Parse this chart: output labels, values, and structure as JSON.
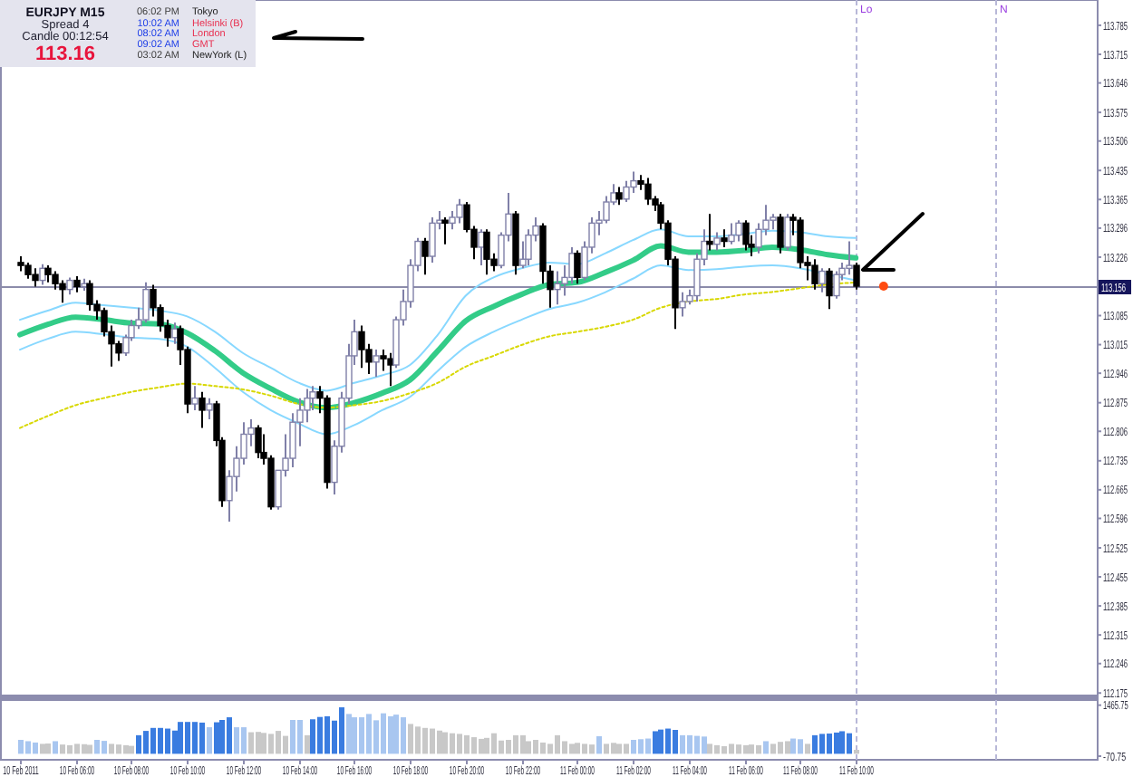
{
  "chart_data": [
    {
      "type": "candlestick",
      "title": "EURJPY M15",
      "annotations": [
        "Spread 4",
        "Candle 00:12:54",
        "113.16",
        "06:02 PM",
        "Tokyo",
        "10:02 AM",
        "Helsinki (B)",
        "08:02 AM",
        "London",
        "09:02 AM",
        "GMT",
        "03:02 AM",
        "NewYork (L)"
      ],
      "x": [
        "2011-02-10T04:00",
        "2011-02-10T04:15",
        "2011-02-10T04:30",
        "2011-02-10T04:45",
        "2011-02-10T05:00",
        "2011-02-10T05:15",
        "2011-02-10T05:30",
        "2011-02-10T05:45",
        "2011-02-10T06:00",
        "2011-02-10T06:15",
        "2011-02-10T06:30",
        "2011-02-10T06:45",
        "2011-02-10T07:00",
        "2011-02-10T07:15",
        "2011-02-10T07:30",
        "2011-02-10T07:45",
        "2011-02-10T08:00",
        "2011-02-10T08:15",
        "2011-02-10T08:30",
        "2011-02-10T08:45",
        "2011-02-10T09:00",
        "2011-02-10T09:15",
        "2011-02-10T09:30",
        "2011-02-10T09:45",
        "2011-02-10T10:00",
        "2011-02-10T10:15",
        "2011-02-10T10:30",
        "2011-02-10T10:45",
        "2011-02-10T11:00",
        "2011-02-10T11:15",
        "2011-02-10T11:30",
        "2011-02-10T11:45",
        "2011-02-10T12:00",
        "2011-02-10T12:15",
        "2011-02-10T12:30",
        "2011-02-10T12:45",
        "2011-02-10T13:00",
        "2011-02-10T13:15",
        "2011-02-10T13:30",
        "2011-02-10T13:45",
        "2011-02-10T14:00",
        "2011-02-10T14:15",
        "2011-02-10T14:30",
        "2011-02-10T14:45",
        "2011-02-10T15:00",
        "2011-02-10T15:15",
        "2011-02-10T15:30",
        "2011-02-10T15:45",
        "2011-02-10T16:00",
        "2011-02-10T16:15",
        "2011-02-10T16:30",
        "2011-02-10T16:45",
        "2011-02-10T17:00",
        "2011-02-10T17:15",
        "2011-02-10T17:30",
        "2011-02-10T17:45",
        "2011-02-10T18:00",
        "2011-02-10T18:15",
        "2011-02-10T18:30",
        "2011-02-10T18:45",
        "2011-02-10T19:00",
        "2011-02-10T19:15",
        "2011-02-10T19:30",
        "2011-02-10T19:45",
        "2011-02-10T20:00",
        "2011-02-10T20:15",
        "2011-02-10T20:30",
        "2011-02-10T20:45",
        "2011-02-10T21:00",
        "2011-02-10T21:15",
        "2011-02-10T21:30",
        "2011-02-10T21:45",
        "2011-02-10T22:00",
        "2011-02-10T22:15",
        "2011-02-10T22:30",
        "2011-02-10T22:45",
        "2011-02-10T23:00",
        "2011-02-10T23:15",
        "2011-02-10T23:30",
        "2011-02-10T23:45",
        "2011-02-11T00:00",
        "2011-02-11T00:15",
        "2011-02-11T00:30",
        "2011-02-11T00:45",
        "2011-02-11T01:00",
        "2011-02-11T01:15",
        "2011-02-11T01:30",
        "2011-02-11T01:45",
        "2011-02-11T02:00",
        "2011-02-11T02:15",
        "2011-02-11T02:30",
        "2011-02-11T02:45",
        "2011-02-11T03:00",
        "2011-02-11T03:15",
        "2011-02-11T03:30",
        "2011-02-11T03:45",
        "2011-02-11T04:00",
        "2011-02-11T04:15",
        "2011-02-11T04:30",
        "2011-02-11T04:45",
        "2011-02-11T05:00",
        "2011-02-11T05:15",
        "2011-02-11T05:30",
        "2011-02-11T05:45",
        "2011-02-11T06:00",
        "2011-02-11T06:15",
        "2011-02-11T06:30",
        "2011-02-11T06:45",
        "2011-02-11T07:00",
        "2011-02-11T07:15",
        "2011-02-11T07:30",
        "2011-02-11T07:45",
        "2011-02-11T08:00",
        "2011-02-11T08:15",
        "2011-02-11T08:30",
        "2011-02-11T08:45",
        "2011-02-11T09:00",
        "2011-02-11T09:15",
        "2011-02-11T09:30",
        "2011-02-11T09:45",
        "2011-02-11T10:00"
      ],
      "ohlc": [
        [
          113.213,
          113.228,
          113.192,
          113.206
        ],
        [
          113.206,
          113.213,
          113.174,
          113.184
        ],
        [
          113.184,
          113.199,
          113.155,
          113.17
        ],
        [
          113.17,
          113.209,
          113.159,
          113.199
        ],
        [
          113.199,
          113.206,
          113.165,
          113.184
        ],
        [
          113.184,
          113.192,
          113.148,
          113.162
        ],
        [
          113.162,
          113.17,
          113.116,
          113.148
        ],
        [
          113.148,
          113.177,
          113.136,
          113.17
        ],
        [
          113.17,
          113.18,
          113.141,
          113.155
        ],
        [
          113.155,
          113.174,
          113.145,
          113.162
        ],
        [
          113.162,
          113.17,
          113.097,
          113.112
        ],
        [
          113.112,
          113.122,
          113.075,
          113.097
        ],
        [
          113.097,
          113.104,
          113.035,
          113.046
        ],
        [
          113.046,
          113.061,
          112.962,
          113.017
        ],
        [
          113.017,
          113.024,
          112.976,
          112.995
        ],
        [
          112.995,
          113.039,
          112.988,
          113.032
        ],
        [
          113.032,
          113.075,
          113.024,
          113.061
        ],
        [
          113.061,
          113.104,
          113.053,
          113.075
        ],
        [
          113.075,
          113.165,
          113.068,
          113.148
        ],
        [
          113.148,
          113.159,
          113.083,
          113.104
        ],
        [
          113.104,
          113.112,
          113.046,
          113.061
        ],
        [
          113.061,
          113.075,
          113.01,
          113.032
        ],
        [
          113.032,
          113.068,
          113.017,
          113.053
        ],
        [
          113.053,
          113.061,
          112.966,
          113.003
        ],
        [
          113.003,
          113.01,
          112.85,
          112.872
        ],
        [
          112.872,
          112.915,
          112.857,
          112.886
        ],
        [
          112.886,
          112.901,
          112.814,
          112.857
        ],
        [
          112.857,
          112.886,
          112.835,
          112.872
        ],
        [
          112.872,
          112.879,
          112.77,
          112.784
        ],
        [
          112.784,
          112.792,
          112.624,
          112.639
        ],
        [
          112.639,
          112.712,
          112.588,
          112.697
        ],
        [
          112.697,
          112.77,
          112.661,
          112.741
        ],
        [
          112.741,
          112.828,
          112.726,
          112.799
        ],
        [
          112.799,
          112.835,
          112.77,
          112.814
        ],
        [
          112.814,
          112.821,
          112.741,
          112.755
        ],
        [
          112.755,
          112.799,
          112.726,
          112.741
        ],
        [
          112.741,
          112.748,
          112.617,
          112.624
        ],
        [
          112.624,
          112.712,
          112.617,
          112.712
        ],
        [
          112.712,
          112.799,
          112.697,
          112.741
        ],
        [
          112.741,
          112.85,
          112.719,
          112.828
        ],
        [
          112.828,
          112.886,
          112.77,
          112.857
        ],
        [
          112.857,
          112.908,
          112.828,
          112.886
        ],
        [
          112.886,
          112.915,
          112.857,
          112.901
        ],
        [
          112.901,
          112.915,
          112.85,
          112.886
        ],
        [
          112.886,
          112.893,
          112.668,
          112.683
        ],
        [
          112.683,
          112.784,
          112.654,
          112.77
        ],
        [
          112.77,
          112.901,
          112.755,
          112.886
        ],
        [
          112.886,
          113.017,
          112.872,
          112.988
        ],
        [
          112.988,
          113.075,
          112.966,
          113.046
        ],
        [
          113.046,
          113.061,
          112.959,
          113.003
        ],
        [
          113.003,
          113.017,
          112.944,
          112.973
        ],
        [
          112.973,
          113.003,
          112.937,
          112.988
        ],
        [
          112.988,
          113.003,
          112.952,
          112.981
        ],
        [
          112.981,
          112.995,
          112.915,
          112.966
        ],
        [
          112.966,
          113.083,
          112.959,
          113.075
        ],
        [
          113.075,
          113.148,
          113.061,
          113.119
        ],
        [
          113.119,
          113.221,
          113.104,
          113.206
        ],
        [
          113.206,
          113.272,
          113.192,
          113.264
        ],
        [
          113.264,
          113.272,
          113.184,
          113.228
        ],
        [
          113.228,
          113.322,
          113.213,
          113.308
        ],
        [
          113.308,
          113.337,
          113.293,
          113.315
        ],
        [
          113.315,
          113.322,
          113.257,
          113.308
        ],
        [
          113.308,
          113.337,
          113.293,
          113.322
        ],
        [
          113.322,
          113.366,
          113.308,
          113.352
        ],
        [
          113.352,
          113.359,
          113.286,
          113.293
        ],
        [
          113.293,
          113.301,
          113.221,
          113.25
        ],
        [
          113.25,
          113.293,
          113.206,
          113.286
        ],
        [
          113.286,
          113.293,
          113.184,
          113.221
        ],
        [
          113.221,
          113.235,
          113.192,
          113.206
        ],
        [
          113.206,
          113.286,
          113.199,
          113.279
        ],
        [
          113.279,
          113.381,
          113.264,
          113.33
        ],
        [
          113.33,
          113.337,
          113.184,
          113.206
        ],
        [
          113.206,
          113.264,
          113.199,
          113.221
        ],
        [
          113.221,
          113.293,
          113.206,
          113.279
        ],
        [
          113.279,
          113.322,
          113.264,
          113.301
        ],
        [
          113.301,
          113.308,
          113.162,
          113.192
        ],
        [
          113.192,
          113.206,
          113.104,
          113.148
        ],
        [
          113.148,
          113.192,
          113.112,
          113.162
        ],
        [
          113.162,
          113.206,
          113.133,
          113.177
        ],
        [
          113.177,
          113.25,
          113.162,
          113.235
        ],
        [
          113.235,
          113.242,
          113.162,
          113.177
        ],
        [
          113.177,
          113.264,
          113.17,
          113.25
        ],
        [
          113.25,
          113.322,
          113.235,
          113.308
        ],
        [
          113.308,
          113.337,
          113.279,
          113.315
        ],
        [
          113.315,
          113.373,
          113.308,
          113.359
        ],
        [
          113.359,
          113.402,
          113.352,
          113.381
        ],
        [
          113.381,
          113.395,
          113.352,
          113.366
        ],
        [
          113.366,
          113.41,
          113.359,
          113.395
        ],
        [
          113.395,
          113.432,
          113.381,
          113.41
        ],
        [
          113.41,
          113.424,
          113.388,
          113.402
        ],
        [
          113.402,
          113.417,
          113.352,
          113.366
        ],
        [
          113.366,
          113.373,
          113.337,
          113.352
        ],
        [
          113.352,
          113.359,
          113.293,
          113.308
        ],
        [
          113.308,
          113.315,
          113.206,
          113.221
        ],
        [
          113.221,
          113.228,
          113.053,
          113.104
        ],
        [
          113.104,
          113.141,
          113.083,
          113.119
        ],
        [
          113.119,
          113.148,
          113.112,
          113.133
        ],
        [
          113.133,
          113.235,
          113.119,
          113.221
        ],
        [
          113.221,
          113.293,
          113.206,
          113.264
        ],
        [
          113.264,
          113.33,
          113.242,
          113.257
        ],
        [
          113.257,
          113.286,
          113.242,
          113.272
        ],
        [
          113.272,
          113.293,
          113.25,
          113.264
        ],
        [
          113.264,
          113.308,
          113.257,
          113.279
        ],
        [
          113.279,
          113.315,
          113.264,
          113.308
        ],
        [
          113.308,
          113.315,
          113.242,
          113.257
        ],
        [
          113.257,
          113.279,
          113.228,
          113.25
        ],
        [
          113.25,
          113.308,
          113.235,
          113.293
        ],
        [
          113.293,
          113.352,
          113.279,
          113.315
        ],
        [
          113.315,
          113.33,
          113.293,
          113.322
        ],
        [
          113.322,
          113.33,
          113.235,
          113.25
        ],
        [
          113.25,
          113.33,
          113.242,
          113.322
        ],
        [
          113.322,
          113.33,
          113.279,
          113.315
        ],
        [
          113.315,
          113.322,
          113.199,
          113.213
        ],
        [
          113.213,
          113.228,
          113.17,
          113.206
        ],
        [
          113.206,
          113.221,
          113.148,
          113.162
        ],
        [
          113.162,
          113.199,
          113.141,
          113.192
        ],
        [
          113.192,
          113.199,
          113.101,
          113.133
        ],
        [
          113.133,
          113.192,
          113.126,
          113.184
        ],
        [
          113.184,
          113.213,
          113.17,
          113.199
        ],
        [
          113.199,
          113.264,
          113.184,
          113.206
        ],
        [
          113.206,
          113.213,
          113.148,
          113.156
        ]
      ],
      "series": [
        {
          "type": "line",
          "color": "#33cc88",
          "x": [
            "2011-02-10T04:00",
            "2011-02-10T05:00",
            "2011-02-10T06:00",
            "2011-02-10T07:00",
            "2011-02-10T08:00",
            "2011-02-10T09:00",
            "2011-02-10T10:00",
            "2011-02-10T11:00",
            "2011-02-10T12:00",
            "2011-02-10T13:00",
            "2011-02-10T14:00",
            "2011-02-10T15:00",
            "2011-02-10T16:00",
            "2011-02-10T17:00",
            "2011-02-10T18:00",
            "2011-02-10T19:00",
            "2011-02-10T20:00",
            "2011-02-10T21:00",
            "2011-02-10T22:00",
            "2011-02-10T23:00",
            "2011-02-11T00:00",
            "2011-02-11T01:00",
            "2011-02-11T02:00",
            "2011-02-11T03:00",
            "2011-02-11T04:00",
            "2011-02-11T05:00",
            "2011-02-11T06:00",
            "2011-02-11T07:00",
            "2011-02-11T08:00",
            "2011-02-11T09:00",
            "2011-02-11T10:00"
          ],
          "values": [
            113.039,
            113.064,
            113.081,
            113.075,
            113.067,
            113.065,
            113.043,
            113.0,
            112.947,
            112.909,
            112.877,
            112.863,
            112.875,
            112.898,
            112.93,
            113.0,
            113.072,
            113.107,
            113.136,
            113.16,
            113.165,
            113.189,
            113.218,
            113.253,
            113.238,
            113.238,
            113.242,
            113.25,
            113.244,
            113.232,
            113.224
          ]
        },
        {
          "type": "line",
          "color": "#88d8ff",
          "x": [
            "2011-02-10T04:00",
            "2011-02-10T05:00",
            "2011-02-10T06:00",
            "2011-02-10T07:00",
            "2011-02-10T08:00",
            "2011-02-10T09:00",
            "2011-02-10T10:00",
            "2011-02-10T11:00",
            "2011-02-10T12:00",
            "2011-02-10T13:00",
            "2011-02-10T14:00",
            "2011-02-10T15:00",
            "2011-02-10T16:00",
            "2011-02-10T17:00",
            "2011-02-10T18:00",
            "2011-02-10T19:00",
            "2011-02-10T20:00",
            "2011-02-10T21:00",
            "2011-02-10T22:00",
            "2011-02-10T23:00",
            "2011-02-11T00:00",
            "2011-02-11T01:00",
            "2011-02-11T02:00",
            "2011-02-11T03:00",
            "2011-02-11T04:00",
            "2011-02-11T05:00",
            "2011-02-11T06:00",
            "2011-02-11T07:00",
            "2011-02-11T08:00",
            "2011-02-11T09:00",
            "2011-02-11T10:00"
          ],
          "values": [
            113.075,
            113.097,
            113.116,
            113.11,
            113.104,
            113.097,
            113.083,
            113.046,
            112.995,
            112.959,
            112.923,
            112.904,
            112.923,
            112.941,
            112.966,
            113.039,
            113.133,
            113.177,
            113.199,
            113.213,
            113.209,
            113.235,
            113.267,
            113.293,
            113.276,
            113.276,
            113.282,
            113.29,
            113.286,
            113.276,
            113.272
          ]
        },
        {
          "type": "line",
          "color": "#88d8ff",
          "x": [
            "2011-02-10T04:00",
            "2011-02-10T05:00",
            "2011-02-10T06:00",
            "2011-02-10T07:00",
            "2011-02-10T08:00",
            "2011-02-10T09:00",
            "2011-02-10T10:00",
            "2011-02-10T11:00",
            "2011-02-10T12:00",
            "2011-02-10T13:00",
            "2011-02-10T14:00",
            "2011-02-10T15:00",
            "2011-02-10T16:00",
            "2011-02-10T17:00",
            "2011-02-10T18:00",
            "2011-02-10T19:00",
            "2011-02-10T20:00",
            "2011-02-10T21:00",
            "2011-02-10T22:00",
            "2011-02-10T23:00",
            "2011-02-11T00:00",
            "2011-02-11T01:00",
            "2011-02-11T02:00",
            "2011-02-11T03:00",
            "2011-02-11T04:00",
            "2011-02-11T05:00",
            "2011-02-11T06:00",
            "2011-02-11T07:00",
            "2011-02-11T08:00",
            "2011-02-11T09:00",
            "2011-02-11T10:00"
          ],
          "values": [
            113.003,
            113.029,
            113.046,
            113.04,
            113.032,
            113.029,
            113.01,
            112.959,
            112.901,
            112.857,
            112.825,
            112.799,
            112.821,
            112.857,
            112.889,
            112.952,
            113.01,
            113.046,
            113.075,
            113.101,
            113.116,
            113.141,
            113.174,
            113.206,
            113.195,
            113.197,
            113.203,
            113.206,
            113.199,
            113.184,
            113.17
          ]
        },
        {
          "type": "line",
          "color": "#d8d800",
          "line_style": "dotted",
          "x": [
            "2011-02-10T04:00",
            "2011-02-10T05:00",
            "2011-02-10T06:00",
            "2011-02-10T07:00",
            "2011-02-10T08:00",
            "2011-02-10T09:00",
            "2011-02-10T10:00",
            "2011-02-10T11:00",
            "2011-02-10T12:00",
            "2011-02-10T13:00",
            "2011-02-10T14:00",
            "2011-02-10T15:00",
            "2011-02-10T16:00",
            "2011-02-10T17:00",
            "2011-02-10T18:00",
            "2011-02-10T19:00",
            "2011-02-10T20:00",
            "2011-02-10T21:00",
            "2011-02-10T22:00",
            "2011-02-10T23:00",
            "2011-02-11T00:00",
            "2011-02-11T01:00",
            "2011-02-11T02:00",
            "2011-02-11T03:00",
            "2011-02-11T04:00",
            "2011-02-11T05:00",
            "2011-02-11T06:00",
            "2011-02-11T07:00",
            "2011-02-11T08:00",
            "2011-02-11T09:00",
            "2011-02-11T10:00"
          ],
          "values": [
            112.814,
            112.843,
            112.869,
            112.886,
            112.901,
            112.912,
            112.921,
            112.915,
            112.907,
            112.892,
            112.872,
            112.863,
            112.869,
            112.879,
            112.898,
            112.923,
            112.962,
            112.988,
            113.014,
            113.035,
            113.046,
            113.058,
            113.075,
            113.104,
            113.119,
            113.125,
            113.136,
            113.142,
            113.151,
            113.16,
            113.165
          ]
        },
        {
          "type": "scatter",
          "color": "#ff4a10",
          "marker": "circle",
          "x": [
            "2011-02-11T11:00"
          ],
          "values": [
            113.156
          ]
        }
      ],
      "xlim": [
        "2011-02-10T03:17",
        "2011-02-11T18:39"
      ],
      "ylim": [
        112.169,
        113.846
      ],
      "yticks": [
        113.785,
        113.715,
        113.646,
        113.575,
        113.506,
        113.435,
        113.365,
        113.296,
        113.226,
        113.085,
        113.015,
        112.946,
        112.875,
        112.806,
        112.735,
        112.665,
        112.596,
        112.525,
        112.455,
        112.385,
        112.315,
        112.246,
        112.175
      ],
      "ref_lines": [
        {
          "axis": "y",
          "value": 113.156,
          "label": "113.156",
          "color": "#8c8caa"
        },
        {
          "axis": "x",
          "value": "2011-02-11T10:00",
          "label": "Lo",
          "color": "#b8b8d8",
          "line_style": "dashed"
        },
        {
          "axis": "x",
          "value": "2011-02-11T15:00",
          "label": "N",
          "color": "#b8b8d8",
          "line_style": "dashed"
        }
      ],
      "tick_labels": "y"
    },
    {
      "type": "bar",
      "x": [
        "2011-02-10T04:00",
        "2011-02-10T04:15",
        "2011-02-10T04:30",
        "2011-02-10T04:45",
        "2011-02-10T05:00",
        "2011-02-10T05:15",
        "2011-02-10T05:30",
        "2011-02-10T05:45",
        "2011-02-10T06:00",
        "2011-02-10T06:15",
        "2011-02-10T06:30",
        "2011-02-10T06:45",
        "2011-02-10T07:00",
        "2011-02-10T07:15",
        "2011-02-10T07:30",
        "2011-02-10T07:45",
        "2011-02-10T08:00",
        "2011-02-10T08:15",
        "2011-02-10T08:30",
        "2011-02-10T08:45",
        "2011-02-10T09:00",
        "2011-02-10T09:15",
        "2011-02-10T09:30",
        "2011-02-10T09:45",
        "2011-02-10T10:00",
        "2011-02-10T10:15",
        "2011-02-10T10:30",
        "2011-02-10T10:45",
        "2011-02-10T11:00",
        "2011-02-10T11:15",
        "2011-02-10T11:30",
        "2011-02-10T11:45",
        "2011-02-10T12:00",
        "2011-02-10T12:15",
        "2011-02-10T12:30",
        "2011-02-10T12:45",
        "2011-02-10T13:00",
        "2011-02-10T13:15",
        "2011-02-10T13:30",
        "2011-02-10T13:45",
        "2011-02-10T14:00",
        "2011-02-10T14:15",
        "2011-02-10T14:30",
        "2011-02-10T14:45",
        "2011-02-10T15:00",
        "2011-02-10T15:15",
        "2011-02-10T15:30",
        "2011-02-10T15:45",
        "2011-02-10T16:00",
        "2011-02-10T16:15",
        "2011-02-10T16:30",
        "2011-02-10T16:45",
        "2011-02-10T17:00",
        "2011-02-10T17:15",
        "2011-02-10T17:30",
        "2011-02-10T17:45",
        "2011-02-10T18:00",
        "2011-02-10T18:15",
        "2011-02-10T18:30",
        "2011-02-10T18:45",
        "2011-02-10T19:00",
        "2011-02-10T19:15",
        "2011-02-10T19:30",
        "2011-02-10T19:45",
        "2011-02-10T20:00",
        "2011-02-10T20:15",
        "2011-02-10T20:30",
        "2011-02-10T20:45",
        "2011-02-10T21:00",
        "2011-02-10T21:15",
        "2011-02-10T21:30",
        "2011-02-10T21:45",
        "2011-02-10T22:00",
        "2011-02-10T22:15",
        "2011-02-10T22:30",
        "2011-02-10T22:45",
        "2011-02-10T23:00",
        "2011-02-10T23:15",
        "2011-02-10T23:30",
        "2011-02-10T23:45",
        "2011-02-11T00:00",
        "2011-02-11T00:15",
        "2011-02-11T00:30",
        "2011-02-11T00:45",
        "2011-02-11T01:00",
        "2011-02-11T01:15",
        "2011-02-11T01:30",
        "2011-02-11T01:45",
        "2011-02-11T02:00",
        "2011-02-11T02:15",
        "2011-02-11T02:30",
        "2011-02-11T02:45",
        "2011-02-11T03:00",
        "2011-02-11T03:15",
        "2011-02-11T03:30",
        "2011-02-11T03:45",
        "2011-02-11T04:00",
        "2011-02-11T04:15",
        "2011-02-11T04:30",
        "2011-02-11T04:45",
        "2011-02-11T05:00",
        "2011-02-11T05:15",
        "2011-02-11T05:30",
        "2011-02-11T05:45",
        "2011-02-11T06:00",
        "2011-02-11T06:15",
        "2011-02-11T06:30",
        "2011-02-11T06:45",
        "2011-02-11T07:00",
        "2011-02-11T07:15",
        "2011-02-11T07:30",
        "2011-02-11T07:45",
        "2011-02-11T08:00",
        "2011-02-11T08:15",
        "2011-02-11T08:30",
        "2011-02-11T08:45",
        "2011-02-11T09:00",
        "2011-02-11T09:15",
        "2011-02-11T09:30",
        "2011-02-11T09:45",
        "2011-02-11T10:00"
      ],
      "values": [
        420,
        380,
        340,
        300,
        310,
        380,
        280,
        260,
        300,
        290,
        270,
        420,
        390,
        300,
        280,
        260,
        240,
        560,
        690,
        780,
        780,
        760,
        700,
        960,
        960,
        960,
        940,
        800,
        950,
        1020,
        1100,
        800,
        800,
        650,
        660,
        630,
        600,
        690,
        540,
        1020,
        1020,
        560,
        1040,
        1110,
        1130,
        1000,
        1400,
        1200,
        1100,
        1100,
        1200,
        1010,
        1220,
        1130,
        1180,
        1100,
        900,
        820,
        780,
        760,
        700,
        650,
        620,
        600,
        560,
        500,
        450,
        480,
        620,
        400,
        420,
        560,
        560,
        380,
        420,
        340,
        300,
        560,
        380,
        300,
        330,
        300,
        280,
        530,
        300,
        330,
        300,
        300,
        420,
        440,
        460,
        680,
        730,
        760,
        720,
        560,
        560,
        540,
        520,
        300,
        260,
        230,
        300,
        280,
        260,
        280,
        260,
        380,
        300,
        360,
        380,
        460,
        440,
        300,
        560,
        600,
        610,
        640,
        680,
        620,
        120
      ],
      "colors": [
        "#a8c6f0",
        "#a8c6f0",
        "#a8c6f0",
        "#c8c8c8",
        "#c8c8c8",
        "#a8c6f0",
        "#c8c8c8",
        "#c8c8c8",
        "#c8c8c8",
        "#c8c8c8",
        "#c8c8c8",
        "#a8c6f0",
        "#a8c6f0",
        "#c8c8c8",
        "#c8c8c8",
        "#c8c8c8",
        "#c8c8c8",
        "#3a7ce0",
        "#3a7ce0",
        "#3a7ce0",
        "#3a7ce0",
        "#3a7ce0",
        "#3a7ce0",
        "#3a7ce0",
        "#3a7ce0",
        "#3a7ce0",
        "#3a7ce0",
        "#a8c6f0",
        "#3a7ce0",
        "#3a7ce0",
        "#3a7ce0",
        "#a8c6f0",
        "#a8c6f0",
        "#c8c8c8",
        "#c8c8c8",
        "#c8c8c8",
        "#c8c8c8",
        "#c8c8c8",
        "#c8c8c8",
        "#a8c6f0",
        "#a8c6f0",
        "#c8c8c8",
        "#3a7ce0",
        "#3a7ce0",
        "#3a7ce0",
        "#3a7ce0",
        "#3a7ce0",
        "#a8c6f0",
        "#a8c6f0",
        "#a8c6f0",
        "#a8c6f0",
        "#a8c6f0",
        "#a8c6f0",
        "#a8c6f0",
        "#a8c6f0",
        "#a8c6f0",
        "#c8c8c8",
        "#c8c8c8",
        "#c8c8c8",
        "#c8c8c8",
        "#c8c8c8",
        "#c8c8c8",
        "#c8c8c8",
        "#c8c8c8",
        "#c8c8c8",
        "#c8c8c8",
        "#c8c8c8",
        "#c8c8c8",
        "#c8c8c8",
        "#c8c8c8",
        "#c8c8c8",
        "#c8c8c8",
        "#c8c8c8",
        "#c8c8c8",
        "#c8c8c8",
        "#c8c8c8",
        "#c8c8c8",
        "#c8c8c8",
        "#c8c8c8",
        "#c8c8c8",
        "#c8c8c8",
        "#c8c8c8",
        "#c8c8c8",
        "#a8c6f0",
        "#c8c8c8",
        "#c8c8c8",
        "#c8c8c8",
        "#c8c8c8",
        "#a8c6f0",
        "#a8c6f0",
        "#a8c6f0",
        "#3a7ce0",
        "#3a7ce0",
        "#3a7ce0",
        "#3a7ce0",
        "#a8c6f0",
        "#a8c6f0",
        "#a8c6f0",
        "#a8c6f0",
        "#c8c8c8",
        "#c8c8c8",
        "#c8c8c8",
        "#c8c8c8",
        "#c8c8c8",
        "#c8c8c8",
        "#c8c8c8",
        "#c8c8c8",
        "#a8c6f0",
        "#c8c8c8",
        "#c8c8c8",
        "#c8c8c8",
        "#a8c6f0",
        "#a8c6f0",
        "#c8c8c8",
        "#3a7ce0",
        "#3a7ce0",
        "#3a7ce0",
        "#3a7ce0",
        "#3a7ce0",
        "#3a7ce0",
        "#c8c8c8"
      ],
      "xlim": [
        "2011-02-10T03:17",
        "2011-02-11T18:39"
      ],
      "xticks": [
        {
          "value": "2011-02-10T04:00",
          "label": "10 Feb 2011"
        },
        {
          "value": "2011-02-10T06:00",
          "label": "10 Feb 06:00"
        },
        {
          "value": "2011-02-10T08:00",
          "label": "10 Feb 08:00"
        },
        {
          "value": "2011-02-10T10:00",
          "label": "10 Feb 10:00"
        },
        {
          "value": "2011-02-10T12:00",
          "label": "10 Feb 12:00"
        },
        {
          "value": "2011-02-10T14:00",
          "label": "10 Feb 14:00"
        },
        {
          "value": "2011-02-10T16:00",
          "label": "10 Feb 16:00"
        },
        {
          "value": "2011-02-10T18:00",
          "label": "10 Feb 18:00"
        },
        {
          "value": "2011-02-10T20:00",
          "label": "10 Feb 20:00"
        },
        {
          "value": "2011-02-10T22:00",
          "label": "10 Feb 22:00"
        },
        {
          "value": "2011-02-11T00:00",
          "label": "11 Feb 00:00"
        },
        {
          "value": "2011-02-11T02:00",
          "label": "11 Feb 02:00"
        },
        {
          "value": "2011-02-11T04:00",
          "label": "11 Feb 04:00"
        },
        {
          "value": "2011-02-11T06:00",
          "label": "11 Feb 06:00"
        },
        {
          "value": "2011-02-11T08:00",
          "label": "11 Feb 08:00"
        },
        {
          "value": "2011-02-11T10:00",
          "label": "11 Feb 10:00"
        }
      ],
      "ylim": [
        -180,
        1620
      ],
      "yticks": [
        1465.75,
        -70.75
      ],
      "ref_lines": [
        {
          "axis": "x",
          "value": "2011-02-11T10:00",
          "color": "#b8b8d8",
          "line_style": "dashed"
        },
        {
          "axis": "x",
          "value": "2011-02-11T15:00",
          "color": "#b8b8d8",
          "line_style": "dashed"
        }
      ]
    }
  ]
}
